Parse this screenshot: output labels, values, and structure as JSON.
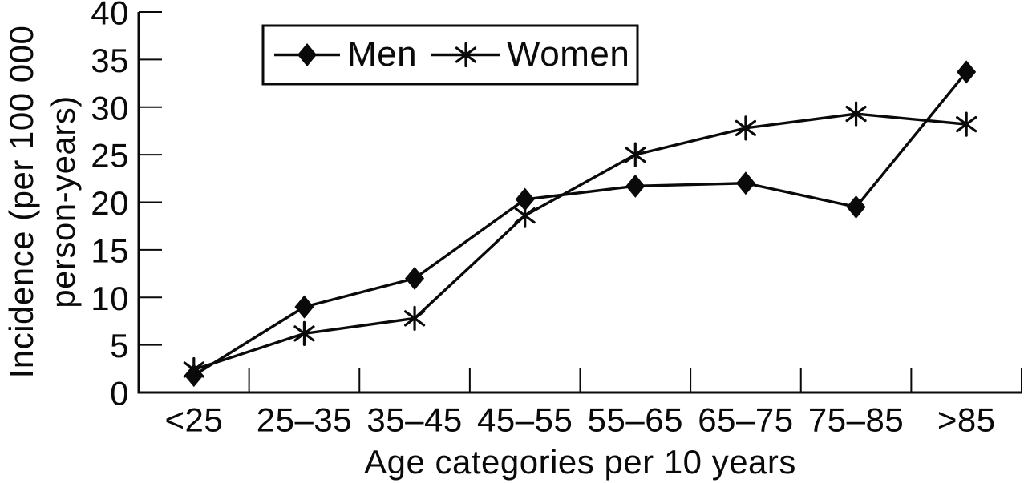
{
  "chart_data": {
    "type": "line",
    "title": "",
    "xlabel": "Age categories per 10 years",
    "ylabel": "Incidence (per 100 000 person-years)",
    "ylabel_line1": "Incidence (per 100 000",
    "ylabel_line2": "person-years)",
    "categories": [
      "<25",
      "25–35",
      "35–45",
      "45–55",
      "55–65",
      "65–75",
      "75–85",
      ">85"
    ],
    "series": [
      {
        "name": "Men",
        "marker": "diamond",
        "values": [
          1.8,
          9.0,
          12.0,
          20.3,
          21.7,
          22.0,
          19.5,
          33.7
        ]
      },
      {
        "name": "Women",
        "marker": "asterisk",
        "values": [
          2.4,
          6.2,
          7.8,
          18.6,
          25.0,
          27.8,
          29.3,
          28.2
        ]
      }
    ],
    "y_ticks": [
      0,
      5,
      10,
      15,
      20,
      25,
      30,
      35,
      40
    ],
    "ylim": [
      0,
      40
    ],
    "grid": false,
    "legend_position": "top-left-inside",
    "colors": {
      "line": "#0a0a0a",
      "text": "#0a0a0a",
      "background": "#ffffff"
    }
  }
}
